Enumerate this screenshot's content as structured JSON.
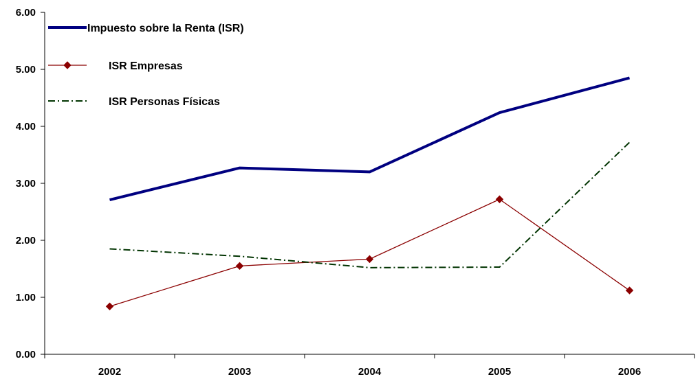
{
  "chart_data": {
    "type": "line",
    "categories": [
      "2002",
      "2003",
      "2004",
      "2005",
      "2006"
    ],
    "ylim": [
      0,
      6
    ],
    "yticks": [
      "0.00",
      "1.00",
      "2.00",
      "3.00",
      "4.00",
      "5.00",
      "6.00"
    ],
    "grid": false,
    "legend_position": "top-left",
    "series": [
      {
        "name": "Impuesto sobre la Renta  (ISR)",
        "values": [
          2.71,
          3.27,
          3.2,
          4.24,
          4.85
        ],
        "color": "#000080",
        "style": "solid-thick"
      },
      {
        "name": "ISR Empresas",
        "values": [
          0.84,
          1.55,
          1.67,
          2.72,
          1.12
        ],
        "color": "#8B0000",
        "style": "solid-diamond"
      },
      {
        "name": "ISR Personas Físicas",
        "values": [
          1.85,
          1.72,
          1.52,
          1.53,
          3.72
        ],
        "color": "#003300",
        "style": "dash-dot"
      }
    ]
  }
}
